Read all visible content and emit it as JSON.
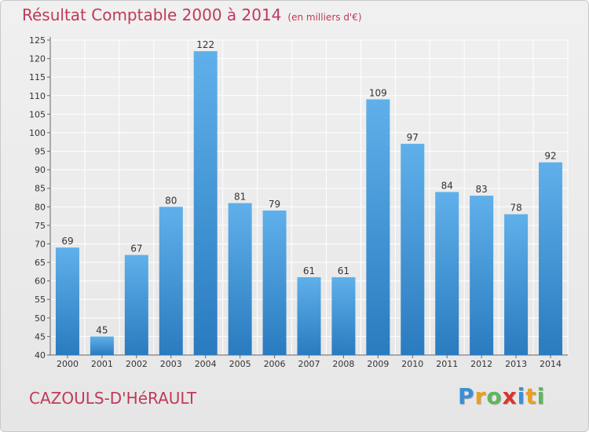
{
  "header": {
    "title": "Résultat Comptable 2000 à 2014",
    "subtitle": "(en milliers d'€)"
  },
  "footer": {
    "commune": "CAZOULS-D'HéRAULT",
    "logo_letters": [
      "P",
      "r",
      "o",
      "x",
      "i",
      "t",
      "i"
    ],
    "logo_colors": [
      "#3a8fd6",
      "#e8a020",
      "#5cb85c",
      "#d9342b",
      "#3a8fd6",
      "#e8a020",
      "#5cb85c"
    ]
  },
  "colors": {
    "bar_top": "#5fb0ea",
    "bar_bottom": "#2a7bbf",
    "grid": "#ffffff",
    "axis_text": "#333333",
    "accent": "#c0395a"
  },
  "chart_data": {
    "type": "bar",
    "title": "Résultat Comptable 2000 à 2014",
    "subtitle": "(en milliers d'€)",
    "categories": [
      "2000",
      "2001",
      "2002",
      "2003",
      "2004",
      "2005",
      "2006",
      "2007",
      "2008",
      "2009",
      "2010",
      "2011",
      "2012",
      "2013",
      "2014"
    ],
    "values": [
      69,
      45,
      67,
      80,
      122,
      81,
      79,
      61,
      61,
      109,
      97,
      84,
      83,
      78,
      92
    ],
    "ylim": [
      40,
      125
    ],
    "yticks": [
      40,
      45,
      50,
      55,
      60,
      65,
      70,
      75,
      80,
      85,
      90,
      95,
      100,
      105,
      110,
      115,
      120,
      125
    ],
    "grid": true,
    "xlabel": "",
    "ylabel": ""
  }
}
